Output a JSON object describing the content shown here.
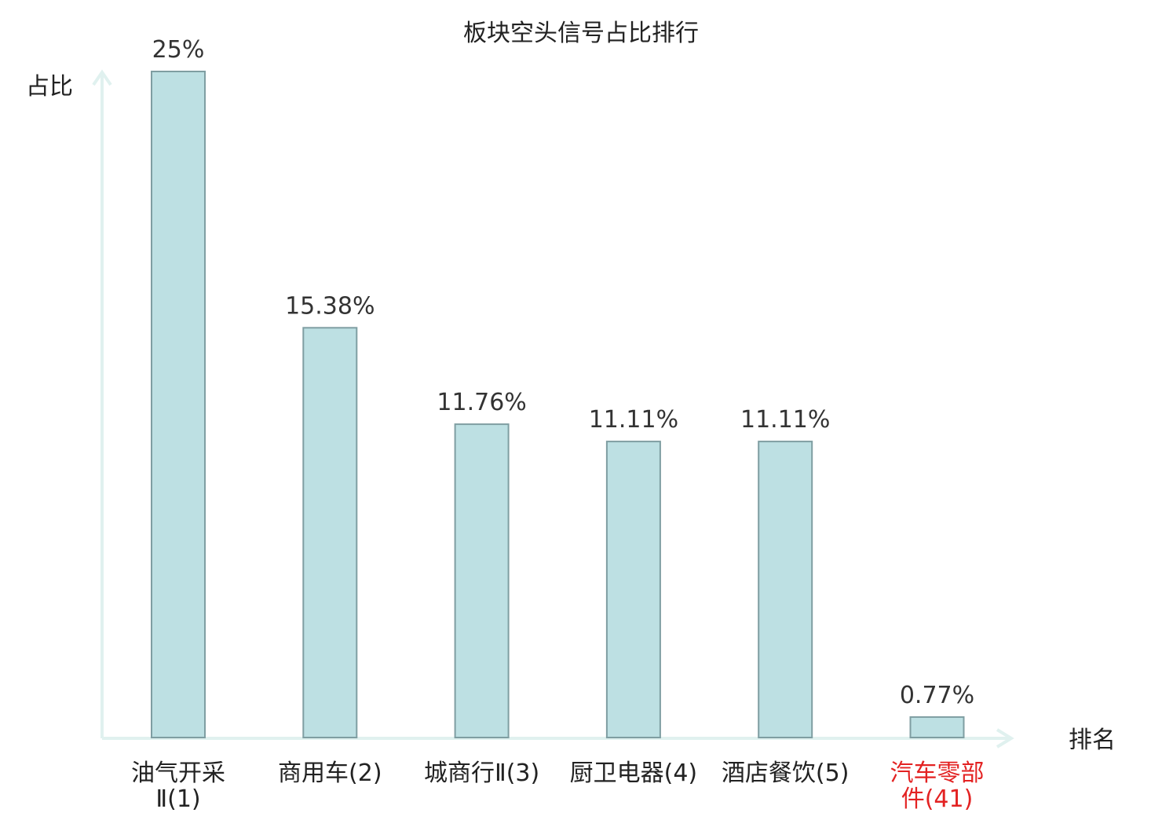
{
  "chart_data": {
    "type": "bar",
    "title": "板块空头信号占比排行",
    "ylabel": "占比",
    "xlabel": "排名",
    "categories": [
      {
        "name": "油气开采Ⅱ",
        "rank": "(1)",
        "lines": [
          "油气开采",
          "Ⅱ(1)"
        ],
        "highlight": false
      },
      {
        "name": "商用车",
        "rank": "(2)",
        "lines": [
          "商用车(2)"
        ],
        "highlight": false
      },
      {
        "name": "城商行Ⅱ",
        "rank": "(3)",
        "lines": [
          "城商行Ⅱ(3)"
        ],
        "highlight": false
      },
      {
        "name": "厨卫电器",
        "rank": "(4)",
        "lines": [
          "厨卫电器(4)"
        ],
        "highlight": false
      },
      {
        "name": "酒店餐饮",
        "rank": "(5)",
        "lines": [
          "酒店餐饮(5)"
        ],
        "highlight": false
      },
      {
        "name": "汽车零部件",
        "rank": "(41)",
        "lines": [
          "汽车零部",
          "件(41)"
        ],
        "highlight": true
      }
    ],
    "values": [
      25,
      15.38,
      11.76,
      11.11,
      11.11,
      0.77
    ],
    "value_labels": [
      "25%",
      "15.38%",
      "11.76%",
      "11.11%",
      "11.11%",
      "0.77%"
    ],
    "ylim": [
      0,
      25
    ],
    "grid": false,
    "legend": "none",
    "colors": {
      "bar_fill": "#bde0e3",
      "bar_stroke": "#7f9ea2",
      "axis": "#e0f1ef",
      "text": "#222222",
      "label": "#333333",
      "highlight": "#e32222"
    }
  }
}
